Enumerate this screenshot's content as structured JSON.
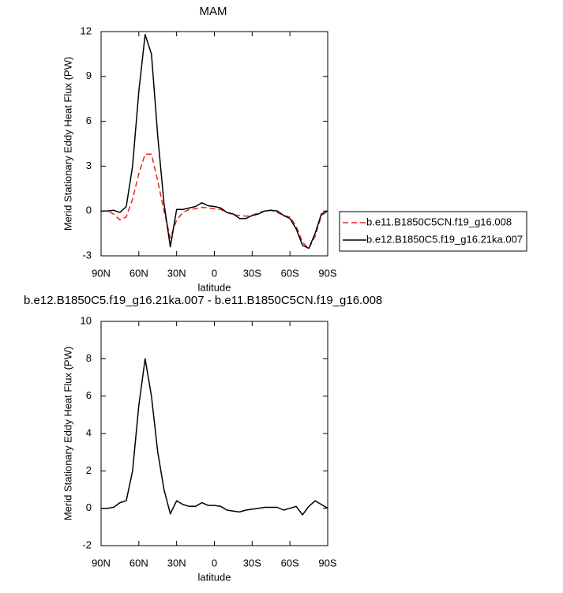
{
  "chart_data": [
    {
      "type": "line",
      "title": "MAM",
      "xlabel": "latitude",
      "ylabel": "Merid Stationary Eddy Heat Flux (PW)",
      "x": [
        90,
        85,
        80,
        75,
        70,
        65,
        60,
        55,
        50,
        45,
        40,
        35,
        30,
        25,
        20,
        15,
        10,
        5,
        0,
        -5,
        -10,
        -15,
        -20,
        -25,
        -30,
        -35,
        -40,
        -45,
        -50,
        -55,
        -60,
        -65,
        -70,
        -75,
        -80,
        -85,
        -90
      ],
      "series": [
        {
          "name": "b.e11.B1850C5CN.f19_g16.008",
          "color": "#e8231f",
          "dash": true,
          "values": [
            0,
            0,
            -0.2,
            -0.6,
            -0.4,
            0.8,
            2.5,
            3.8,
            3.8,
            2,
            0,
            -1.8,
            -0.6,
            -0.1,
            0.1,
            0.15,
            0.25,
            0.2,
            0.15,
            0.1,
            -0.1,
            -0.25,
            -0.3,
            -0.35,
            -0.3,
            -0.1,
            0,
            0.05,
            -0.1,
            -0.3,
            -0.4,
            -1,
            -2.1,
            -2.5,
            -1.7,
            -0.3,
            0
          ]
        },
        {
          "name": "b.e12.B1850C5.f19_g16.21ka.007",
          "color": "#000000",
          "dash": false,
          "values": [
            0,
            0,
            0.05,
            -0.1,
            0.3,
            3,
            8,
            11.8,
            10.5,
            5,
            0.5,
            -2.4,
            0.1,
            0.1,
            0.2,
            0.3,
            0.55,
            0.35,
            0.3,
            0.2,
            -0.1,
            -0.2,
            -0.5,
            -0.5,
            -0.3,
            -0.2,
            0,
            0.05,
            0,
            -0.3,
            -0.5,
            -1.2,
            -2.3,
            -2.5,
            -1.5,
            -0.2,
            0
          ]
        }
      ],
      "xlim": [
        90,
        -90
      ],
      "xticks": [
        {
          "value": 90,
          "label": "90N"
        },
        {
          "value": 60,
          "label": "60N"
        },
        {
          "value": 30,
          "label": "30N"
        },
        0,
        {
          "value": -30,
          "label": "30S"
        },
        {
          "value": -60,
          "label": "60S"
        },
        {
          "value": -90,
          "label": "90S"
        }
      ],
      "ylim": [
        -3,
        12
      ],
      "yticks": [
        -3,
        0,
        3,
        6,
        9,
        12
      ],
      "legend_position": "right"
    },
    {
      "type": "line",
      "title": "b.e12.B1850C5.f19_g16.21ka.007 - b.e11.B1850C5CN.f19_g16.008",
      "xlabel": "latitude",
      "ylabel": "Merid Stationary Eddy Heat Flux (PW)",
      "x": [
        90,
        85,
        80,
        75,
        70,
        65,
        60,
        55,
        50,
        45,
        40,
        35,
        30,
        25,
        20,
        15,
        10,
        5,
        0,
        -5,
        -10,
        -15,
        -20,
        -25,
        -30,
        -35,
        -40,
        -45,
        -50,
        -55,
        -60,
        -65,
        -70,
        -75,
        -80,
        -85,
        -90
      ],
      "series": [
        {
          "color": "#000000",
          "dash": false,
          "values": [
            0,
            0,
            0.05,
            0.3,
            0.4,
            2,
            5.5,
            8,
            6,
            3,
            1,
            -0.3,
            0.4,
            0.2,
            0.1,
            0.1,
            0.3,
            0.15,
            0.15,
            0.1,
            -0.1,
            -0.15,
            -0.2,
            -0.1,
            -0.05,
            0,
            0.05,
            0.05,
            0.05,
            -0.1,
            0,
            0.1,
            -0.35,
            0.1,
            0.4,
            0.2,
            0
          ]
        }
      ],
      "xlim": [
        90,
        -90
      ],
      "xticks": [
        {
          "value": 90,
          "label": "90N"
        },
        {
          "value": 60,
          "label": "60N"
        },
        {
          "value": 30,
          "label": "30N"
        },
        0,
        {
          "value": -30,
          "label": "30S"
        },
        {
          "value": -60,
          "label": "60S"
        },
        {
          "value": -90,
          "label": "90S"
        }
      ],
      "ylim": [
        -2,
        10
      ],
      "yticks": [
        -2,
        0,
        2,
        4,
        6,
        8,
        10
      ]
    }
  ]
}
